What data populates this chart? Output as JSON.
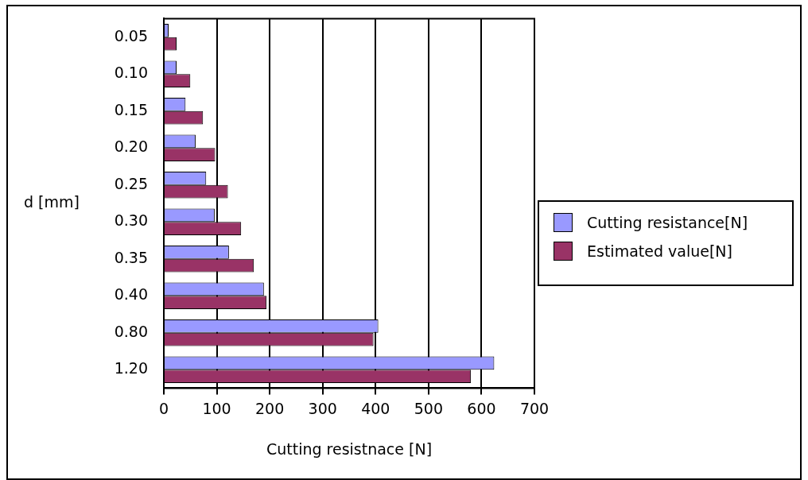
{
  "chart_data": {
    "type": "bar",
    "orientation": "horizontal",
    "categories": [
      "0.05",
      "0.10",
      "0.15",
      "0.20",
      "0.25",
      "0.30",
      "0.35",
      "0.40",
      "0.80",
      "1.20"
    ],
    "series": [
      {
        "name": "Cutting resistance[N]",
        "color": "#9999ff",
        "values": [
          9,
          24,
          41,
          60,
          80,
          96,
          123,
          189,
          405,
          624
        ]
      },
      {
        "name": "Estimated value[N]",
        "color": "#993366",
        "values": [
          24,
          50,
          74,
          97,
          121,
          146,
          170,
          194,
          396,
          580
        ]
      }
    ],
    "xlabel": "Cutting resistnace [N]",
    "ylabel": "d [mm]",
    "xlim": [
      0,
      700
    ],
    "xticks": [
      0,
      100,
      200,
      300,
      400,
      500,
      600,
      700
    ],
    "grid": "x",
    "legend": "right"
  }
}
